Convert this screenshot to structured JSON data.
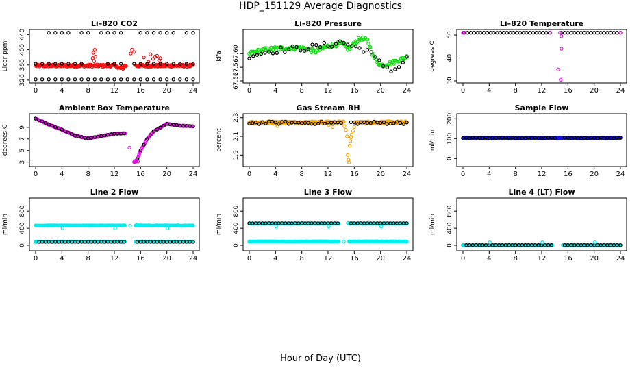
{
  "title": "HDP_151129  Average Diagnostics",
  "x_label": "Hour of Day (UTC)",
  "colors": {
    "black": "#000000",
    "red": "#ee1111",
    "green": "#11dd11",
    "magenta": "#ee11ee",
    "orange": "#ffa500",
    "blue": "#1111ee",
    "cyan": "#00eeee"
  },
  "chart_data": [
    {
      "id": "co2",
      "type": "scatter",
      "title": "Li–820 CO2",
      "ylabel": "Licor ppm",
      "xlim": [
        0,
        24
      ],
      "ylim": [
        318,
        448
      ],
      "xticks": [
        0,
        4,
        8,
        12,
        16,
        20,
        24
      ],
      "yticks": [
        320,
        360,
        400,
        440
      ],
      "series": [
        {
          "name": "red",
          "color": "red",
          "kind": "band",
          "mid": 358,
          "noise": 3,
          "step": 0.1,
          "segments": [
            [
              0.0,
              13.8
            ],
            [
              15.3,
              24.0
            ]
          ],
          "bump": [
            12.4,
            13.4,
            6
          ]
        },
        {
          "name": "red-outliers",
          "color": "red",
          "points": [
            [
              8.7,
              378
            ],
            [
              8.8,
              392
            ],
            [
              8.9,
              370
            ],
            [
              9.0,
              400
            ],
            [
              9.1,
              382
            ],
            [
              14.5,
              390
            ],
            [
              14.7,
              400
            ],
            [
              15.0,
              394
            ],
            [
              16.5,
              380
            ],
            [
              17.5,
              388
            ],
            [
              17.9,
              376
            ],
            [
              18.2,
              382
            ],
            [
              18.5,
              384
            ],
            [
              18.8,
              372
            ],
            [
              19.0,
              378
            ],
            [
              17.2,
              368
            ]
          ]
        },
        {
          "name": "black-top",
          "color": "black",
          "kind": "row",
          "y": 445,
          "step": 1,
          "segments": [
            [
              2,
              5
            ],
            [
              7,
              8
            ],
            [
              10,
              13
            ],
            [
              16,
              21
            ],
            [
              23,
              24
            ]
          ]
        },
        {
          "name": "black-mid",
          "color": "black",
          "kind": "row",
          "y": 363,
          "step": 1,
          "segments": [
            [
              0,
              7
            ],
            [
              11,
              13
            ],
            [
              15,
              24
            ]
          ]
        },
        {
          "name": "black-low",
          "color": "black",
          "kind": "row",
          "y": 322,
          "step": 1,
          "segments": [
            [
              0,
              24
            ]
          ]
        }
      ]
    },
    {
      "id": "pressure",
      "type": "scatter",
      "title": "Li–820 Pressure",
      "ylabel": "kPa",
      "xlim": [
        0,
        24
      ],
      "ylim": [
        67.52,
        67.665
      ],
      "xticks": [
        0,
        4,
        8,
        12,
        16,
        20,
        24
      ],
      "yticks": [
        67.52,
        67.56,
        67.6
      ],
      "ytick_labels": [
        "67.52",
        "67.56",
        "67.60"
      ],
      "series": [
        {
          "name": "green",
          "color": "green",
          "kind": "path",
          "noise": 0.006,
          "step": 0.15,
          "path": [
            [
              0,
              67.6
            ],
            [
              2,
              67.61
            ],
            [
              4,
              67.615
            ],
            [
              8,
              67.618
            ],
            [
              10,
              67.606
            ],
            [
              12,
              67.622
            ],
            [
              14,
              67.63
            ],
            [
              15.2,
              67.612
            ],
            [
              16,
              67.632
            ],
            [
              17,
              67.645
            ],
            [
              18,
              67.638
            ],
            [
              19,
              67.59
            ],
            [
              20,
              67.565
            ],
            [
              22,
              67.575
            ],
            [
              24,
              67.59
            ]
          ]
        },
        {
          "name": "black",
          "color": "black",
          "kind": "path",
          "noise": 0.009,
          "step": 0.6,
          "path": [
            [
              0,
              67.595
            ],
            [
              4,
              67.61
            ],
            [
              8,
              67.615
            ],
            [
              12,
              67.625
            ],
            [
              14,
              67.635
            ],
            [
              16,
              67.62
            ],
            [
              18,
              67.61
            ],
            [
              20,
              67.57
            ],
            [
              22,
              67.55
            ],
            [
              24,
              67.585
            ]
          ]
        }
      ]
    },
    {
      "id": "temperature",
      "type": "scatter",
      "title": "Li–820 Temperature",
      "ylabel": "degrees C",
      "xlim": [
        0,
        24
      ],
      "ylim": [
        30,
        51.5
      ],
      "xticks": [
        0,
        4,
        8,
        12,
        16,
        20,
        24
      ],
      "yticks": [
        30,
        40,
        50
      ],
      "series": [
        {
          "name": "black",
          "color": "black",
          "kind": "row",
          "y": 51,
          "step": 0.5,
          "segments": [
            [
              0.2,
              13.5
            ],
            [
              15.0,
              24.0
            ]
          ]
        },
        {
          "name": "magenta",
          "color": "magenta",
          "points": [
            [
              0.0,
              51
            ],
            [
              0.1,
              51
            ],
            [
              13.3,
              51
            ],
            [
              14.8,
              51
            ],
            [
              14.5,
              35
            ],
            [
              14.9,
              30.5
            ],
            [
              15.0,
              44
            ],
            [
              15.0,
              49.5
            ],
            [
              24.0,
              51
            ]
          ]
        }
      ]
    },
    {
      "id": "ambient",
      "type": "scatter",
      "title": "Ambient Box Temperature",
      "ylabel": "degrees C",
      "xlim": [
        0,
        24
      ],
      "ylim": [
        2.6,
        11.0
      ],
      "xticks": [
        0,
        4,
        8,
        12,
        16,
        20,
        24
      ],
      "yticks": [
        3,
        5,
        7,
        9
      ],
      "series": [
        {
          "name": "magenta",
          "color": "magenta",
          "kind": "path",
          "noise": 0.05,
          "step": 0.1,
          "path": [
            [
              0,
              10.5
            ],
            [
              1,
              10.0
            ],
            [
              2,
              9.5
            ],
            [
              4,
              8.6
            ],
            [
              6,
              7.6
            ],
            [
              8,
              7.1
            ],
            [
              10,
              7.5
            ],
            [
              12,
              7.9
            ],
            [
              13.7,
              8.0
            ]
          ]
        },
        {
          "name": "magenta-2",
          "color": "magenta",
          "kind": "path",
          "noise": 0.05,
          "step": 0.1,
          "path": [
            [
              15.0,
              3.0
            ],
            [
              15.5,
              3.5
            ],
            [
              16.0,
              5.0
            ],
            [
              17.0,
              7.0
            ],
            [
              18.0,
              8.3
            ],
            [
              20.0,
              9.6
            ],
            [
              22.0,
              9.3
            ],
            [
              24.0,
              9.2
            ]
          ]
        },
        {
          "name": "black",
          "color": "black",
          "kind": "path",
          "noise": 0.03,
          "step": 0.5,
          "path": [
            [
              0,
              10.5
            ],
            [
              1,
              10.0
            ],
            [
              2,
              9.5
            ],
            [
              4,
              8.6
            ],
            [
              6,
              7.6
            ],
            [
              8,
              7.1
            ],
            [
              10,
              7.5
            ],
            [
              12,
              7.9
            ],
            [
              13.5,
              8.0
            ]
          ]
        },
        {
          "name": "black-2",
          "color": "black",
          "kind": "path",
          "noise": 0.03,
          "step": 0.5,
          "path": [
            [
              15.5,
              3.5
            ],
            [
              16.0,
              5.0
            ],
            [
              17.0,
              7.0
            ],
            [
              18.0,
              8.3
            ],
            [
              20.0,
              9.6
            ],
            [
              22.0,
              9.3
            ],
            [
              24.0,
              9.2
            ]
          ]
        },
        {
          "name": "magenta-outliers",
          "color": "magenta",
          "points": [
            [
              14.3,
              5.5
            ],
            [
              15.2,
              3.0
            ],
            [
              15.4,
              3.3
            ],
            [
              15.6,
              3.1
            ]
          ]
        }
      ]
    },
    {
      "id": "rh",
      "type": "scatter",
      "title": "Gas Stream RH",
      "ylabel": "percent",
      "xlim": [
        0,
        24
      ],
      "ylim": [
        1.8,
        2.32
      ],
      "xticks": [
        0,
        4,
        8,
        12,
        16,
        20,
        24
      ],
      "yticks": [
        1.9,
        2.1,
        2.3
      ],
      "series": [
        {
          "name": "orange",
          "color": "orange",
          "kind": "band",
          "mid": 2.25,
          "noise": 0.012,
          "step": 0.1,
          "segments": [
            [
              0,
              14.4
            ],
            [
              16.1,
              24
            ]
          ]
        },
        {
          "name": "orange-dip",
          "color": "orange",
          "points": [
            [
              14.5,
              2.21
            ],
            [
              14.7,
              2.17
            ],
            [
              14.9,
              2.1
            ],
            [
              15.0,
              1.9
            ],
            [
              15.1,
              1.85
            ],
            [
              15.2,
              1.82
            ],
            [
              15.3,
              2.0
            ],
            [
              15.4,
              2.05
            ],
            [
              15.5,
              2.09
            ],
            [
              15.6,
              2.12
            ],
            [
              15.8,
              2.16
            ],
            [
              16.0,
              2.2
            ],
            [
              12.7,
              2.2
            ],
            [
              4.3,
              2.21
            ],
            [
              12.1,
              2.22
            ]
          ]
        },
        {
          "name": "black",
          "color": "black",
          "kind": "band",
          "mid": 2.245,
          "noise": 0.015,
          "step": 0.5,
          "segments": [
            [
              0,
              14
            ],
            [
              15.5,
              24
            ]
          ]
        }
      ]
    },
    {
      "id": "sample-flow",
      "type": "scatter",
      "title": "Sample Flow",
      "ylabel": "ml/min",
      "xlim": [
        0,
        24
      ],
      "ylim": [
        -30,
        215
      ],
      "xticks": [
        0,
        4,
        8,
        12,
        16,
        20,
        24
      ],
      "yticks": [
        0,
        100,
        200
      ],
      "series": [
        {
          "name": "blue",
          "color": "blue",
          "kind": "band",
          "mid": 103,
          "noise": 2,
          "step": 0.1,
          "segments": [
            [
              0,
              24
            ]
          ]
        },
        {
          "name": "black",
          "color": "black",
          "kind": "band",
          "mid": 104,
          "noise": 2,
          "step": 0.5,
          "segments": [
            [
              0,
              14
            ],
            [
              15.5,
              24
            ]
          ]
        }
      ]
    },
    {
      "id": "line2",
      "type": "scatter",
      "title": "Line 2 Flow",
      "ylabel": "ml/min",
      "xlim": [
        0,
        24
      ],
      "ylim": [
        -80,
        1060
      ],
      "xticks": [
        0,
        4,
        8,
        12,
        16,
        20,
        24
      ],
      "yticks": [
        0,
        400,
        800
      ],
      "series": [
        {
          "name": "cyan-high",
          "color": "cyan",
          "kind": "band",
          "mid": 462,
          "noise": 6,
          "step": 0.1,
          "segments": [
            [
              0,
              13.6
            ],
            [
              15.2,
              24
            ]
          ]
        },
        {
          "name": "cyan-low",
          "color": "cyan",
          "kind": "band",
          "mid": 82,
          "noise": 3,
          "step": 0.1,
          "segments": [
            [
              0,
              13.6
            ],
            [
              15.2,
              24
            ]
          ]
        },
        {
          "name": "black-low",
          "color": "black",
          "kind": "row",
          "y": 82,
          "step": 0.5,
          "segments": [
            [
              0,
              13.5
            ],
            [
              15.5,
              24
            ]
          ]
        },
        {
          "name": "cyan-outliers",
          "color": "cyan",
          "points": [
            [
              4.1,
              400
            ],
            [
              12.1,
              400
            ],
            [
              20.1,
              400
            ],
            [
              14.4,
              460
            ],
            [
              15.5,
              490
            ],
            [
              0,
              82
            ]
          ]
        }
      ]
    },
    {
      "id": "line3",
      "type": "scatter",
      "title": "Line 3 Flow",
      "ylabel": "ml/min",
      "xlim": [
        0,
        24
      ],
      "ylim": [
        -80,
        1060
      ],
      "xticks": [
        0,
        4,
        8,
        12,
        16,
        20,
        24
      ],
      "yticks": [
        0,
        400,
        800
      ],
      "series": [
        {
          "name": "cyan-high",
          "color": "cyan",
          "kind": "band",
          "mid": 512,
          "noise": 6,
          "step": 0.1,
          "segments": [
            [
              0,
              13.6
            ],
            [
              15.2,
              24
            ]
          ]
        },
        {
          "name": "cyan-low",
          "color": "cyan",
          "kind": "band",
          "mid": 90,
          "noise": 3,
          "step": 0.1,
          "segments": [
            [
              0,
              13.6
            ],
            [
              15.2,
              24
            ]
          ]
        },
        {
          "name": "black-high",
          "color": "black",
          "kind": "row",
          "y": 515,
          "step": 0.5,
          "segments": [
            [
              0,
              13.5
            ],
            [
              15.5,
              24
            ]
          ]
        },
        {
          "name": "cyan-outliers",
          "color": "cyan",
          "points": [
            [
              4.1,
              440
            ],
            [
              12.1,
              440
            ],
            [
              20.1,
              440
            ],
            [
              14.4,
              90
            ],
            [
              15.0,
              520
            ]
          ]
        }
      ]
    },
    {
      "id": "line4",
      "type": "scatter",
      "title": "Line 4 (LT) Flow",
      "ylabel": "ml/min",
      "xlim": [
        0,
        24
      ],
      "ylim": [
        -80,
        1060
      ],
      "xticks": [
        0,
        4,
        8,
        12,
        16,
        20,
        24
      ],
      "yticks": [
        0,
        400,
        800
      ],
      "series": [
        {
          "name": "cyan",
          "color": "cyan",
          "kind": "band",
          "mid": 5,
          "noise": 2,
          "step": 0.1,
          "segments": [
            [
              0,
              13.6
            ],
            [
              15.2,
              24
            ]
          ]
        },
        {
          "name": "black",
          "color": "black",
          "kind": "row",
          "y": 5,
          "step": 0.5,
          "segments": [
            [
              0,
              13.5
            ],
            [
              15.5,
              24
            ]
          ]
        },
        {
          "name": "cyan-outliers",
          "color": "cyan",
          "points": [
            [
              4.1,
              70
            ],
            [
              12.1,
              70
            ],
            [
              20.1,
              70
            ],
            [
              0,
              5
            ]
          ]
        }
      ]
    }
  ]
}
